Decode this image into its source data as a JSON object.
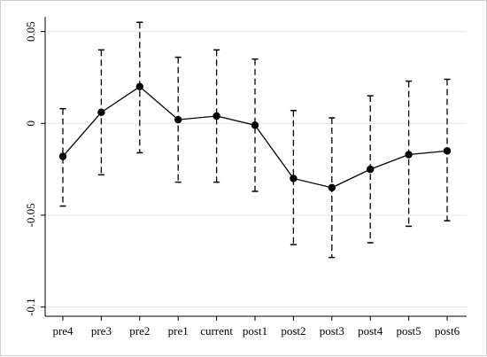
{
  "chart_data": {
    "type": "line",
    "title": "",
    "xlabel": "",
    "ylabel": "",
    "categories": [
      "pre4",
      "pre3",
      "pre2",
      "pre1",
      "current",
      "post1",
      "post2",
      "post3",
      "post4",
      "post5",
      "post6"
    ],
    "series": [
      {
        "values": [
          -0.018,
          0.006,
          0.02,
          0.002,
          0.004,
          -0.001,
          -0.03,
          -0.035,
          -0.025,
          -0.017,
          -0.015
        ],
        "ci_lower": [
          -0.045,
          -0.028,
          -0.016,
          -0.032,
          -0.032,
          -0.037,
          -0.066,
          -0.073,
          -0.065,
          -0.056,
          -0.053
        ],
        "ci_upper": [
          0.008,
          0.04,
          0.055,
          0.036,
          0.04,
          0.035,
          0.007,
          0.003,
          0.015,
          0.023,
          0.024
        ]
      }
    ],
    "y_ticks": [
      -0.1,
      -0.05,
      0,
      0.05
    ],
    "y_tick_labels": [
      "-0.1",
      "-0.05",
      "0",
      "0.05"
    ],
    "ylim": [
      -0.1,
      0.05
    ],
    "grid": "horizontal",
    "legend": "none",
    "colors": {
      "line": "#000000",
      "grid": "#e6e6e6",
      "axis": "#000000"
    }
  }
}
